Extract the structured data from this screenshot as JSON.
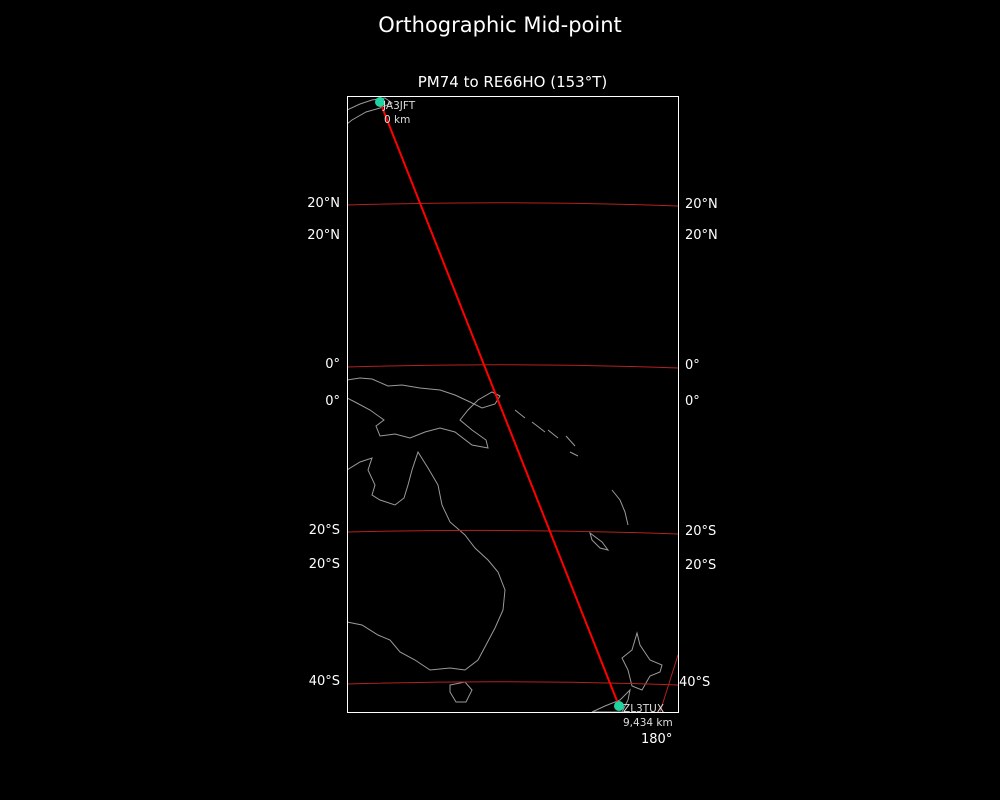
{
  "figure": {
    "title": "Orthographic Mid-point"
  },
  "map": {
    "title": "PM74 to RE66HO (153°T)",
    "projection": "orthographic",
    "colors": {
      "background": "#000000",
      "coastline": "#9a9a9a",
      "path": "#ff0000",
      "gridline": "#b22222",
      "marker": "#1fd4a0"
    },
    "lat_labels_left": [
      "20°N",
      "20°N",
      "0°",
      "0°",
      "20°S",
      "20°S",
      "40°S"
    ],
    "lat_labels_right": [
      "20°N",
      "20°N",
      "0°",
      "0°",
      "20°S",
      "20°S",
      "40°S"
    ],
    "lon_labels": [
      "180°"
    ],
    "start": {
      "callsign": "JA3JFT",
      "distance": "0 km",
      "grid": "PM74"
    },
    "end": {
      "callsign": "ZL3TUX",
      "distance": "9,434 km",
      "grid": "RE66HO"
    }
  }
}
